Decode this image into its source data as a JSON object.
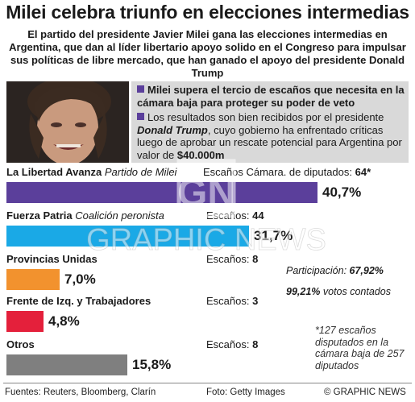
{
  "title": "Milei celebra triunfo en elecciones intermedias",
  "subtitle": "El partido del presidente Javier Milei gana las elecciones intermedias en Argentina, que dan al líder libertario apoyo solido en el Congreso para impulsar sus políticas de libre mercado, que han ganado el apoyo del presidente Donald Trump",
  "bullets": {
    "b1": "Milei supera el tercio de escaños que necesita en la cámara baja para proteger su poder de veto",
    "b2_part1": "Los resultados son bien recibidos por el presidente ",
    "b2_name": "Donald Trump",
    "b2_part2": ", cuyo gobierno ha enfrentado críticas luego de aprobar un rescate potencial para Argentina por valor de ",
    "b2_amount": "$40.000m"
  },
  "chart_data": {
    "type": "bar",
    "orientation": "horizontal",
    "categories": [
      "La Libertad Avanza",
      "Fuerza Patria",
      "Provincias Unidas",
      "Frente de Izq. y Trabajadores",
      "Otros"
    ],
    "coalitions": [
      "Partido de Milei",
      "Coalición peronista",
      "",
      "",
      ""
    ],
    "seat_labels": [
      "Escaños Cámara. de diputados: 64*",
      "Escaños: 44",
      "Escaños: 8",
      "Escaños: 3",
      "Escaños: 8"
    ],
    "seats": [
      64,
      44,
      8,
      3,
      8
    ],
    "values": [
      40.7,
      31.7,
      7.0,
      4.8,
      15.8
    ],
    "value_labels": [
      "40,7%",
      "31,7%",
      "7,0%",
      "4,8%",
      "15,8%"
    ],
    "colors": [
      "#5b3f9b",
      "#1aa9e6",
      "#f2922e",
      "#e4203b",
      "#7f7f7f"
    ],
    "unit": "%"
  },
  "notes": {
    "participation_label": "Participación: ",
    "participation_value": "67,92%",
    "counted_value": "99,21%",
    "counted_label": " votos contados",
    "footnote": "*127 escaños disputados en la cámara baja de 257 diputados"
  },
  "footer": {
    "sources": "Fuentes: Reuters, Bloomberg, Clarín",
    "photo": "Foto: Getty Images",
    "credit": "© GRAPHIC NEWS"
  },
  "watermark": {
    "logo": "GN",
    "text": "GRAPHIC NEWS"
  }
}
